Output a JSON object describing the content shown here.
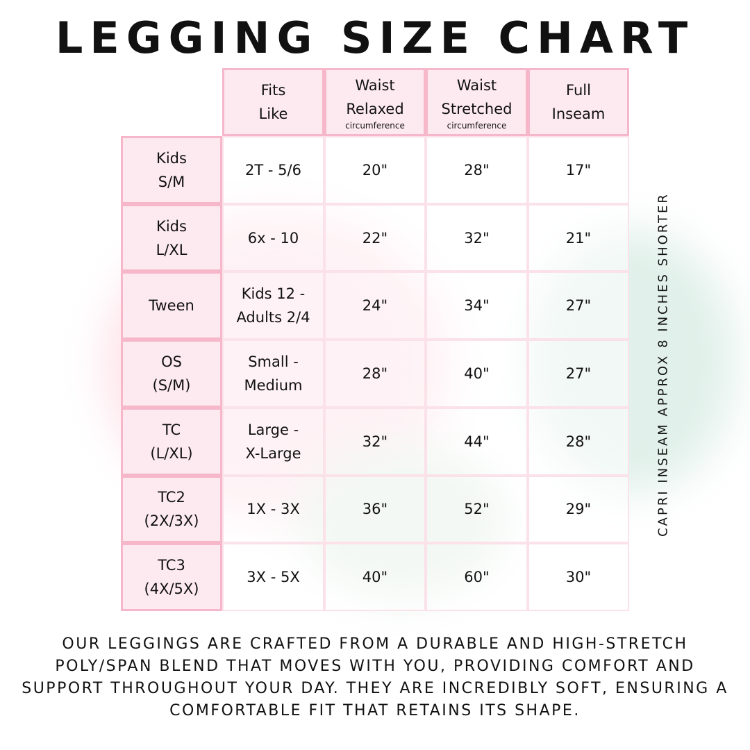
{
  "title": "LEGGING SIZE CHART",
  "columns": [
    {
      "label": "Fits\nLike",
      "sub": ""
    },
    {
      "label": "Waist\nRelaxed",
      "sub": "circumference"
    },
    {
      "label": "Waist\nStretched",
      "sub": "circumference"
    },
    {
      "label": "Full\nInseam",
      "sub": ""
    }
  ],
  "rows": [
    {
      "size": "Kids\nS/M",
      "fits": "2T - 5/6",
      "relaxed": "20\"",
      "stretched": "28\"",
      "inseam": "17\""
    },
    {
      "size": "Kids\nL/XL",
      "fits": "6x - 10",
      "relaxed": "22\"",
      "stretched": "32\"",
      "inseam": "21\""
    },
    {
      "size": "Tween",
      "fits": "Kids 12 -\nAdults 2/4",
      "relaxed": "24\"",
      "stretched": "34\"",
      "inseam": "27\""
    },
    {
      "size": "OS\n(S/M)",
      "fits": "Small -\nMedium",
      "relaxed": "28\"",
      "stretched": "40\"",
      "inseam": "27\""
    },
    {
      "size": "TC\n(L/XL)",
      "fits": "Large -\nX-Large",
      "relaxed": "32\"",
      "stretched": "44\"",
      "inseam": "28\""
    },
    {
      "size": "TC2\n(2X/3X)",
      "fits": "1X - 3X",
      "relaxed": "36\"",
      "stretched": "52\"",
      "inseam": "29\""
    },
    {
      "size": "TC3\n(4X/5X)",
      "fits": "3X - 5X",
      "relaxed": "40\"",
      "stretched": "60\"",
      "inseam": "30\""
    }
  ],
  "side_note": "CAPRI INSEAM APPROX 8 INCHES SHORTER",
  "footer": "Our leggings are crafted from a durable and high-stretch poly/span blend that moves with you, providing comfort and support throughout your day. They are incredibly soft, ensuring a comfortable fit that retains its shape.",
  "colors": {
    "border": "#f5b7c9",
    "header_fill": "#fdeaf0"
  }
}
